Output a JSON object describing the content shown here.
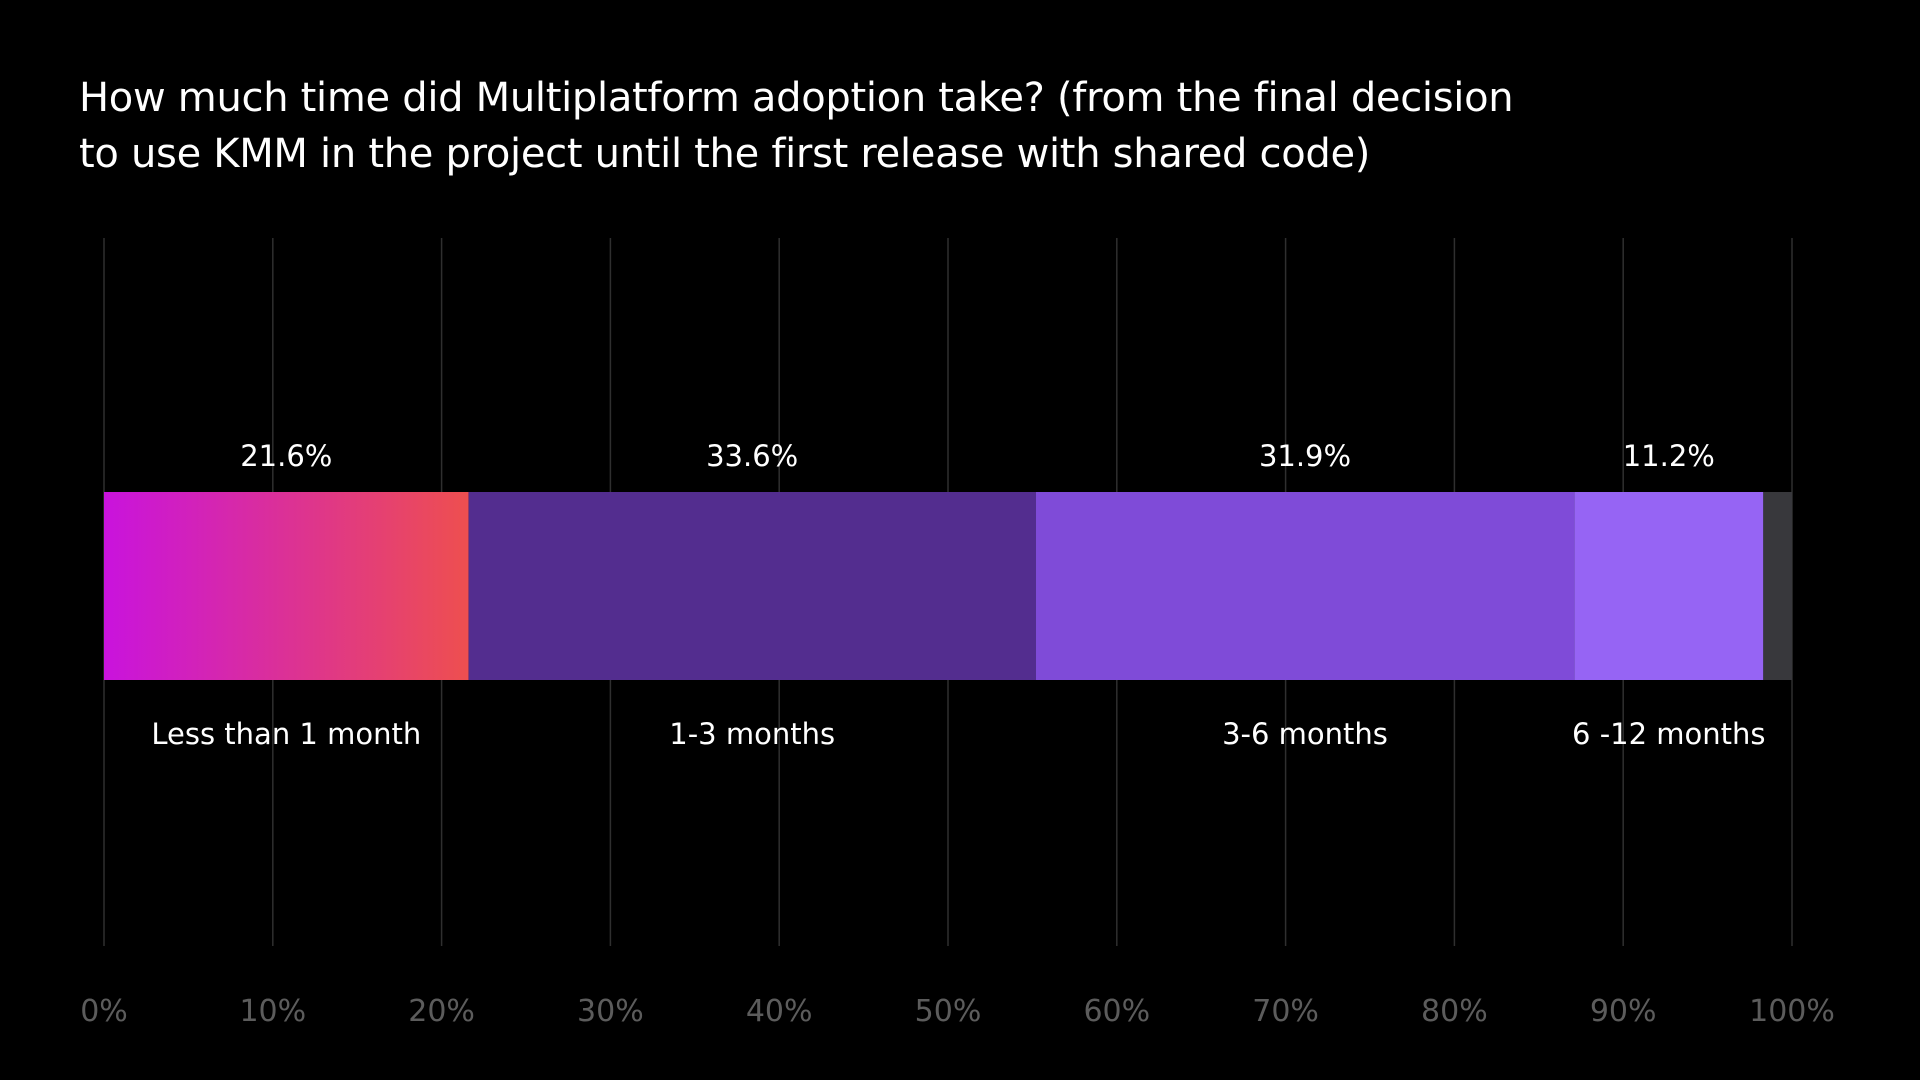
{
  "title_lines": [
    "How much time did Multiplatform adoption take? (from the final decision",
    "to use KMM in the project until the first release with shared code)"
  ],
  "colors": {
    "background": "#000000",
    "gridline": "#2f2f2f",
    "tick_label": "#5c5c5c",
    "text": "#ffffff"
  },
  "chart_data": {
    "type": "bar",
    "orientation": "horizontal",
    "stacked": true,
    "title": "How much time did Multiplatform adoption take? (from the final decision to use KMM in the project until the first release with shared code)",
    "xlim": [
      0,
      100
    ],
    "x_ticks": [
      {
        "value": 0,
        "label": "0%"
      },
      {
        "value": 10,
        "label": "10%"
      },
      {
        "value": 20,
        "label": "20%"
      },
      {
        "value": 30,
        "label": "30%"
      },
      {
        "value": 40,
        "label": "40%"
      },
      {
        "value": 50,
        "label": "50%"
      },
      {
        "value": 60,
        "label": "60%"
      },
      {
        "value": 70,
        "label": "70%"
      },
      {
        "value": 80,
        "label": "80%"
      },
      {
        "value": 90,
        "label": "90%"
      },
      {
        "value": 100,
        "label": "100%"
      }
    ],
    "grid": true,
    "segments": [
      {
        "label": "Less than 1 month",
        "value": 21.6,
        "value_label": "21.6%",
        "color": "#c913dd",
        "color_end": "#ee4f4f"
      },
      {
        "label": "1-3 months",
        "value": 33.6,
        "value_label": "33.6%",
        "color": "#532d8f"
      },
      {
        "label": "3-6 months",
        "value": 31.9,
        "value_label": "31.9%",
        "color": "#7f4bd8"
      },
      {
        "label": "6 -12 months",
        "value": 11.2,
        "value_label": "11.2%",
        "color": "#9664f4"
      },
      {
        "label": "",
        "value": 1.7,
        "value_label": "",
        "color": "#38383c"
      }
    ]
  }
}
